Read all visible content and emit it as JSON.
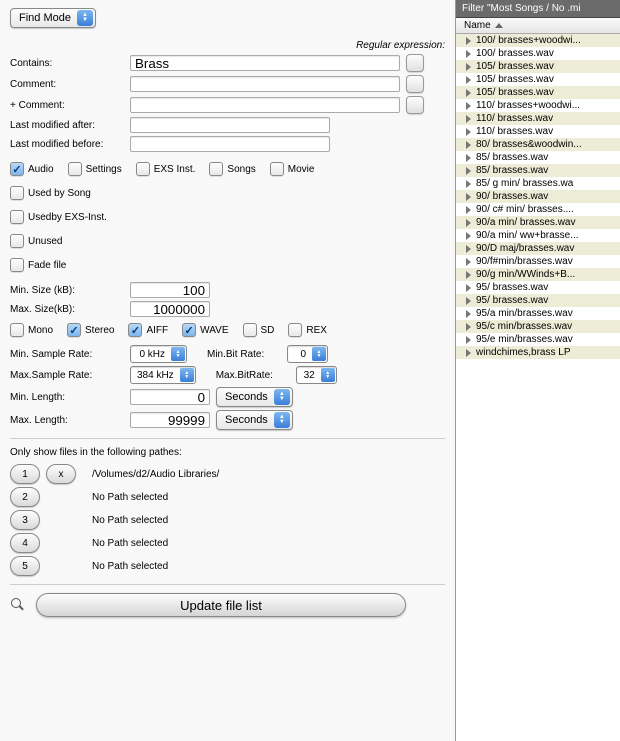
{
  "mode": {
    "label": "Find Mode"
  },
  "regex_label": "Regular expression:",
  "fields": {
    "contains": {
      "label": "Contains:",
      "value": "Brass"
    },
    "comment": {
      "label": "Comment:",
      "value": ""
    },
    "pluscomment": {
      "label": "+ Comment:",
      "value": ""
    },
    "lastafter": {
      "label": "Last modified after:",
      "value": ""
    },
    "lastbefore": {
      "label": "Last modified before:",
      "value": ""
    }
  },
  "typechecks": {
    "audio": {
      "label": "Audio",
      "on": true
    },
    "settings": {
      "label": "Settings",
      "on": false
    },
    "exsinst": {
      "label": "EXS Inst.",
      "on": false
    },
    "songs": {
      "label": "Songs",
      "on": false
    },
    "movie": {
      "label": "Movie",
      "on": false
    }
  },
  "usage": {
    "usedbysong": {
      "label": "Used by Song",
      "on": false
    },
    "usedbyexs": {
      "label": "Usedby EXS-Inst.",
      "on": false
    },
    "unused": {
      "label": "Unused",
      "on": false
    },
    "fadefile": {
      "label": "Fade file",
      "on": false
    }
  },
  "size": {
    "min": {
      "label": "Min. Size (kB):",
      "value": "100"
    },
    "max": {
      "label": "Max. Size(kB):",
      "value": "1000000"
    }
  },
  "format": {
    "mono": {
      "label": "Mono",
      "on": false
    },
    "stereo": {
      "label": "Stereo",
      "on": true
    },
    "aiff": {
      "label": "AIFF",
      "on": true
    },
    "wave": {
      "label": "WAVE",
      "on": true
    },
    "sd": {
      "label": "SD",
      "on": false
    },
    "rex": {
      "label": "REX",
      "on": false
    }
  },
  "rates": {
    "minsr": {
      "label": "Min. Sample Rate:",
      "value": "0 kHz"
    },
    "maxsr": {
      "label": "Max.Sample Rate:",
      "value": "384 kHz"
    },
    "minbr": {
      "label": "Min.Bit Rate:",
      "value": "0"
    },
    "maxbr": {
      "label": "Max.BitRate:",
      "value": "32"
    },
    "minlen": {
      "label": "Min. Length:",
      "value": "0",
      "unit": "Seconds"
    },
    "maxlen": {
      "label": "Max. Length:",
      "value": "99999",
      "unit": "Seconds"
    }
  },
  "paths": {
    "heading": "Only show files in the following pathes:",
    "items": [
      {
        "num": "1",
        "text": "/Volumes/d2/Audio Libraries/",
        "clear": true
      },
      {
        "num": "2",
        "text": "No Path selected"
      },
      {
        "num": "3",
        "text": "No Path selected"
      },
      {
        "num": "4",
        "text": "No Path selected"
      },
      {
        "num": "5",
        "text": "No Path selected"
      }
    ]
  },
  "update_label": "Update file list",
  "filter_title": "Filter \"Most Songs / No .mi",
  "col_name": "Name",
  "files": [
    "100/ brasses+woodwi...",
    "100/ brasses.wav",
    "105/ brasses.wav",
    "105/ brasses.wav",
    "105/ brasses.wav",
    "110/ brasses+woodwi...",
    "110/ brasses.wav",
    "110/ brasses.wav",
    "80/ brasses&woodwin...",
    "85/ brasses.wav",
    "85/ brasses.wav",
    "85/ g min/ brasses.wa",
    "90/ brasses.wav",
    "90/ c# min/ brasses....",
    "90/a min/ brasses.wav",
    "90/a min/ ww+brasse...",
    "90/D maj/brasses.wav",
    "90/f#min/brasses.wav",
    "90/g min/WWinds+B...",
    "95/ brasses.wav",
    "95/ brasses.wav",
    "95/a min/brasses.wav",
    "95/c min/brasses.wav",
    "95/e min/brasses.wav",
    "windchimes,brass LP"
  ]
}
